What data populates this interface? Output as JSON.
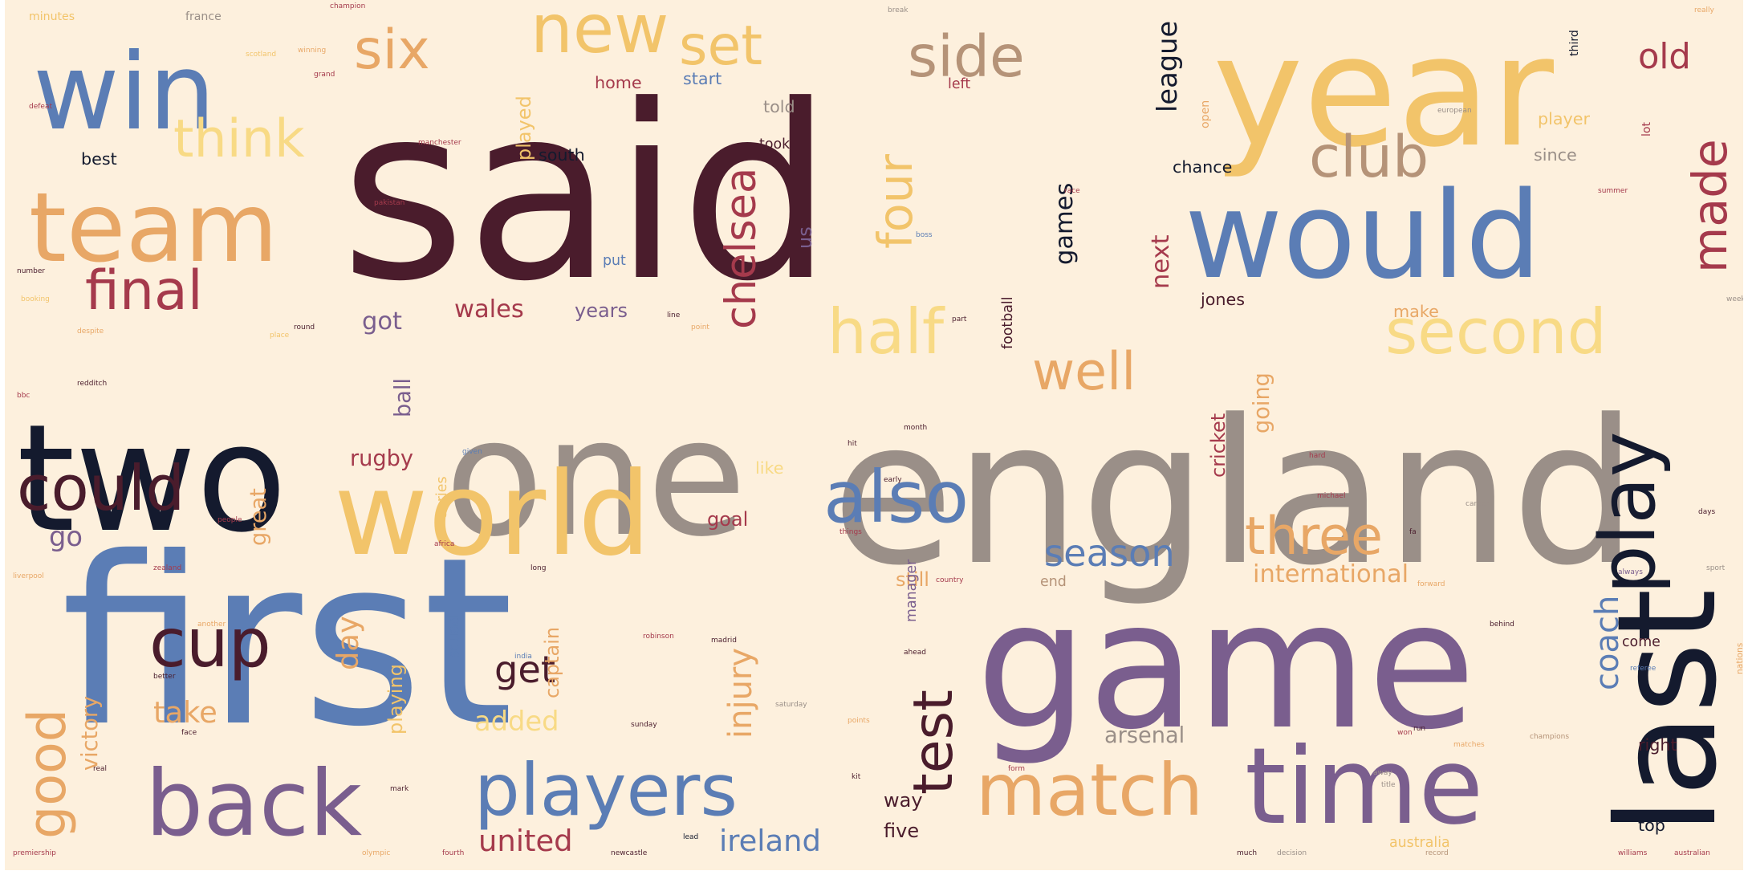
{
  "colors": {
    "background": "#fdf0dd",
    "palette": [
      "#4a1c2c",
      "#f2c46a",
      "#5b7db5",
      "#9a8f88",
      "#141a2e",
      "#e8a766",
      "#7a5e8e",
      "#a53a4c",
      "#b59378",
      "#f8da85"
    ]
  },
  "words": [
    {
      "text": "said",
      "weight": 100,
      "color": "#4a1c2c",
      "vertical": false
    },
    {
      "text": "first",
      "weight": 96,
      "color": "#5b7db5",
      "vertical": false
    },
    {
      "text": "england",
      "weight": 82,
      "color": "#9a8f88",
      "vertical": false
    },
    {
      "text": "game",
      "weight": 72,
      "color": "#7a5e8e",
      "vertical": false
    },
    {
      "text": "one",
      "weight": 66,
      "color": "#9a8f88",
      "vertical": false
    },
    {
      "text": "year",
      "weight": 62,
      "color": "#f2c46a",
      "vertical": false
    },
    {
      "text": "two",
      "weight": 60,
      "color": "#141a2e",
      "vertical": false
    },
    {
      "text": "last",
      "weight": 55,
      "color": "#141a2e",
      "vertical": true
    },
    {
      "text": "would",
      "weight": 48,
      "color": "#5b7db5",
      "vertical": false
    },
    {
      "text": "world",
      "weight": 46,
      "color": "#f2c46a",
      "vertical": false
    },
    {
      "text": "win",
      "weight": 42,
      "color": "#5b7db5",
      "vertical": false
    },
    {
      "text": "time",
      "weight": 42,
      "color": "#7a5e8e",
      "vertical": false
    },
    {
      "text": "team",
      "weight": 38,
      "color": "#e8a766",
      "vertical": false
    },
    {
      "text": "back",
      "weight": 36,
      "color": "#7a5e8e",
      "vertical": false
    },
    {
      "text": "players",
      "weight": 28,
      "color": "#5b7db5",
      "vertical": false
    },
    {
      "text": "match",
      "weight": 28,
      "color": "#e8a766",
      "vertical": false
    },
    {
      "text": "play",
      "weight": 30,
      "color": "#141a2e",
      "vertical": true
    },
    {
      "text": "also",
      "weight": 28,
      "color": "#5b7db5",
      "vertical": false
    },
    {
      "text": "new",
      "weight": 26,
      "color": "#f2c46a",
      "vertical": false
    },
    {
      "text": "cup",
      "weight": 26,
      "color": "#4a1c2c",
      "vertical": false
    },
    {
      "text": "could",
      "weight": 24,
      "color": "#4a1c2c",
      "vertical": false
    },
    {
      "text": "half",
      "weight": 24,
      "color": "#f8da85",
      "vertical": false
    },
    {
      "text": "second",
      "weight": 24,
      "color": "#f8da85",
      "vertical": false
    },
    {
      "text": "side",
      "weight": 22,
      "color": "#b59378",
      "vertical": false
    },
    {
      "text": "club",
      "weight": 22,
      "color": "#b59378",
      "vertical": false
    },
    {
      "text": "six",
      "weight": 21,
      "color": "#e8a766",
      "vertical": false
    },
    {
      "text": "set",
      "weight": 21,
      "color": "#f2c46a",
      "vertical": false
    },
    {
      "text": "final",
      "weight": 21,
      "color": "#a53a4c",
      "vertical": false
    },
    {
      "text": "think",
      "weight": 20,
      "color": "#f8da85",
      "vertical": false
    },
    {
      "text": "well",
      "weight": 20,
      "color": "#e8a766",
      "vertical": false
    },
    {
      "text": "three",
      "weight": 20,
      "color": "#e8a766",
      "vertical": false
    },
    {
      "text": "good",
      "weight": 20,
      "color": "#e8a766",
      "vertical": true
    },
    {
      "text": "test",
      "weight": 21,
      "color": "#4a1c2c",
      "vertical": true
    },
    {
      "text": "made",
      "weight": 18,
      "color": "#a53a4c",
      "vertical": true
    },
    {
      "text": "four",
      "weight": 18,
      "color": "#f2c46a",
      "vertical": true
    },
    {
      "text": "chelsea",
      "weight": 16,
      "color": "#a53a4c",
      "vertical": true
    },
    {
      "text": "season",
      "weight": 14,
      "color": "#5b7db5",
      "vertical": false
    },
    {
      "text": "get",
      "weight": 14,
      "color": "#4a1c2c",
      "vertical": false
    },
    {
      "text": "old",
      "weight": 13,
      "color": "#a53a4c",
      "vertical": false
    },
    {
      "text": "coach",
      "weight": 12,
      "color": "#5b7db5",
      "vertical": true
    },
    {
      "text": "injury",
      "weight": 12,
      "color": "#e8a766",
      "vertical": true
    },
    {
      "text": "take",
      "weight": 11,
      "color": "#e8a766",
      "vertical": false
    },
    {
      "text": "ireland",
      "weight": 11,
      "color": "#5b7db5",
      "vertical": false
    },
    {
      "text": "united",
      "weight": 11,
      "color": "#a53a4c",
      "vertical": false
    },
    {
      "text": "day",
      "weight": 11,
      "color": "#e8a766",
      "vertical": true
    },
    {
      "text": "league",
      "weight": 10,
      "color": "#141a2e",
      "vertical": true
    },
    {
      "text": "added",
      "weight": 10,
      "color": "#f8da85",
      "vertical": false
    },
    {
      "text": "go",
      "weight": 10,
      "color": "#7a5e8e",
      "vertical": false
    },
    {
      "text": "international",
      "weight": 9,
      "color": "#e8a766",
      "vertical": false
    },
    {
      "text": "wales",
      "weight": 9,
      "color": "#a53a4c",
      "vertical": false
    },
    {
      "text": "got",
      "weight": 9,
      "color": "#7a5e8e",
      "vertical": false
    },
    {
      "text": "games",
      "weight": 9,
      "color": "#141a2e",
      "vertical": true
    },
    {
      "text": "next",
      "weight": 9,
      "color": "#a53a4c",
      "vertical": true
    },
    {
      "text": "arsenal",
      "weight": 8,
      "color": "#9a8f88",
      "vertical": false
    },
    {
      "text": "victory",
      "weight": 8,
      "color": "#e8a766",
      "vertical": true
    },
    {
      "text": "great",
      "weight": 8,
      "color": "#e8a766",
      "vertical": true
    },
    {
      "text": "ball",
      "weight": 8,
      "color": "#7a5e8e",
      "vertical": true
    },
    {
      "text": "rugby",
      "weight": 8,
      "color": "#a53a4c",
      "vertical": false
    },
    {
      "text": "going",
      "weight": 8,
      "color": "#e8a766",
      "vertical": true
    },
    {
      "text": "five",
      "weight": 7,
      "color": "#4a1c2c",
      "vertical": false
    },
    {
      "text": "captain",
      "weight": 7,
      "color": "#e8a766",
      "vertical": true
    },
    {
      "text": "goal",
      "weight": 7,
      "color": "#a53a4c",
      "vertical": false
    },
    {
      "text": "years",
      "weight": 7,
      "color": "#7a5e8e",
      "vertical": false
    },
    {
      "text": "played",
      "weight": 7,
      "color": "#f2c46a",
      "vertical": true
    },
    {
      "text": "playing",
      "weight": 7,
      "color": "#f2c46a",
      "vertical": true
    },
    {
      "text": "cricket",
      "weight": 7,
      "color": "#a53a4c",
      "vertical": true
    },
    {
      "text": "still",
      "weight": 7,
      "color": "#e8a766",
      "vertical": false
    },
    {
      "text": "way",
      "weight": 7,
      "color": "#4a1c2c",
      "vertical": false
    },
    {
      "text": "us",
      "weight": 7,
      "color": "#7a5e8e",
      "vertical": true
    },
    {
      "text": "like",
      "weight": 6,
      "color": "#f8da85",
      "vertical": false
    },
    {
      "text": "best",
      "weight": 6,
      "color": "#141a2e",
      "vertical": false
    },
    {
      "text": "south",
      "weight": 6,
      "color": "#141a2e",
      "vertical": false
    },
    {
      "text": "chance",
      "weight": 6,
      "color": "#141a2e",
      "vertical": false
    },
    {
      "text": "top",
      "weight": 6,
      "color": "#141a2e",
      "vertical": false
    },
    {
      "text": "right",
      "weight": 6,
      "color": "#4a1c2c",
      "vertical": false
    },
    {
      "text": "since",
      "weight": 6,
      "color": "#9a8f88",
      "vertical": false
    },
    {
      "text": "make",
      "weight": 6,
      "color": "#e8a766",
      "vertical": false
    },
    {
      "text": "jones",
      "weight": 6,
      "color": "#4a1c2c",
      "vertical": false
    },
    {
      "text": "player",
      "weight": 6,
      "color": "#f2c46a",
      "vertical": false
    },
    {
      "text": "told",
      "weight": 6,
      "color": "#9a8f88",
      "vertical": false
    },
    {
      "text": "home",
      "weight": 6,
      "color": "#a53a4c",
      "vertical": false
    },
    {
      "text": "start",
      "weight": 6,
      "color": "#5b7db5",
      "vertical": false
    },
    {
      "text": "took",
      "weight": 5,
      "color": "#4a1c2c",
      "vertical": false
    },
    {
      "text": "put",
      "weight": 5,
      "color": "#5b7db5",
      "vertical": false
    },
    {
      "text": "end",
      "weight": 5,
      "color": "#b59378",
      "vertical": false
    },
    {
      "text": "series",
      "weight": 5,
      "color": "#f2c46a",
      "vertical": true
    },
    {
      "text": "squad",
      "weight": 5,
      "color": "#5b7db5",
      "vertical": true
    },
    {
      "text": "football",
      "weight": 5,
      "color": "#4a1c2c",
      "vertical": true
    },
    {
      "text": "manager",
      "weight": 5,
      "color": "#7a5e8e",
      "vertical": true
    },
    {
      "text": "come",
      "weight": 5,
      "color": "#4a1c2c",
      "vertical": false
    },
    {
      "text": "australia",
      "weight": 5,
      "color": "#f2c46a",
      "vertical": false
    },
    {
      "text": "left",
      "weight": 5,
      "color": "#a53a4c",
      "vertical": false
    },
    {
      "text": "third",
      "weight": 4,
      "color": "#141a2e",
      "vertical": true
    },
    {
      "text": "open",
      "weight": 4,
      "color": "#e8a766",
      "vertical": true
    },
    {
      "text": "lot",
      "weight": 4,
      "color": "#a53a4c",
      "vertical": true
    },
    {
      "text": "minutes",
      "weight": 4,
      "color": "#f2c46a",
      "vertical": false
    },
    {
      "text": "france",
      "weight": 4,
      "color": "#9a8f88",
      "vertical": false
    },
    {
      "text": "nations",
      "weight": 3,
      "color": "#e8a766",
      "vertical": true
    },
    {
      "text": "always",
      "weight": 2,
      "color": "#7a5e8e",
      "vertical": false
    },
    {
      "text": "sport",
      "weight": 2,
      "color": "#9a8f88",
      "vertical": false
    },
    {
      "text": "champions",
      "weight": 2,
      "color": "#b59378",
      "vertical": false
    },
    {
      "text": "days",
      "weight": 2,
      "color": "#4a1c2c",
      "vertical": false
    },
    {
      "text": "williams",
      "weight": 2,
      "color": "#a53a4c",
      "vertical": false
    },
    {
      "text": "australian",
      "weight": 2,
      "color": "#a53a4c",
      "vertical": false
    },
    {
      "text": "record",
      "weight": 2,
      "color": "#b59378",
      "vertical": false
    },
    {
      "text": "decision",
      "weight": 2,
      "color": "#9a8f88",
      "vertical": false
    },
    {
      "text": "much",
      "weight": 2,
      "color": "#4a1c2c",
      "vertical": false
    },
    {
      "text": "premiership",
      "weight": 2,
      "color": "#a53a4c",
      "vertical": false
    },
    {
      "text": "olympic",
      "weight": 2,
      "color": "#e8a766",
      "vertical": false
    },
    {
      "text": "fourth",
      "weight": 2,
      "color": "#a53a4c",
      "vertical": false
    },
    {
      "text": "newcastle",
      "weight": 2,
      "color": "#4a1c2c",
      "vertical": false
    },
    {
      "text": "lead",
      "weight": 2,
      "color": "#141a2e",
      "vertical": false
    },
    {
      "text": "liverpool",
      "weight": 2,
      "color": "#e8a766",
      "vertical": false
    },
    {
      "text": "zealand",
      "weight": 2,
      "color": "#a53a4c",
      "vertical": false
    },
    {
      "text": "people",
      "weight": 2,
      "color": "#a53a4c",
      "vertical": false
    },
    {
      "text": "robinson",
      "weight": 2,
      "color": "#a53a4c",
      "vertical": false
    },
    {
      "text": "saturday",
      "weight": 2,
      "color": "#9a8f88",
      "vertical": false
    },
    {
      "text": "points",
      "weight": 2,
      "color": "#e8a766",
      "vertical": false
    },
    {
      "text": "referee",
      "weight": 2,
      "color": "#5b7db5",
      "vertical": false
    },
    {
      "text": "behind",
      "weight": 2,
      "color": "#4a1c2c",
      "vertical": false
    },
    {
      "text": "matches",
      "weight": 2,
      "color": "#e8a766",
      "vertical": false
    },
    {
      "text": "form",
      "weight": 2,
      "color": "#a53a4c",
      "vertical": false
    },
    {
      "text": "country",
      "weight": 2,
      "color": "#a53a4c",
      "vertical": false
    },
    {
      "text": "michael",
      "weight": 2,
      "color": "#a53a4c",
      "vertical": false
    },
    {
      "text": "career",
      "weight": 2,
      "color": "#9a8f88",
      "vertical": false
    },
    {
      "text": "forward",
      "weight": 2,
      "color": "#e8a766",
      "vertical": false
    },
    {
      "text": "away",
      "weight": 2,
      "color": "#9a8f88",
      "vertical": false
    },
    {
      "text": "madrid",
      "weight": 2,
      "color": "#4a1c2c",
      "vertical": false
    },
    {
      "text": "sunday",
      "weight": 2,
      "color": "#4a1c2c",
      "vertical": false
    },
    {
      "text": "india",
      "weight": 2,
      "color": "#5b7db5",
      "vertical": false
    },
    {
      "text": "africa",
      "weight": 2,
      "color": "#a53a4c",
      "vertical": false
    },
    {
      "text": "early",
      "weight": 2,
      "color": "#4a1c2c",
      "vertical": false
    },
    {
      "text": "long",
      "weight": 2,
      "color": "#4a1c2c",
      "vertical": false
    },
    {
      "text": "another",
      "weight": 2,
      "color": "#e8a766",
      "vertical": false
    },
    {
      "text": "better",
      "weight": 2,
      "color": "#4a1c2c",
      "vertical": false
    },
    {
      "text": "real",
      "weight": 2,
      "color": "#4a1c2c",
      "vertical": false
    },
    {
      "text": "mark",
      "weight": 2,
      "color": "#4a1c2c",
      "vertical": false
    },
    {
      "text": "face",
      "weight": 2,
      "color": "#4a1c2c",
      "vertical": false
    },
    {
      "text": "winning",
      "weight": 2,
      "color": "#e8a766",
      "vertical": false
    },
    {
      "text": "grand",
      "weight": 2,
      "color": "#a53a4c",
      "vertical": false
    },
    {
      "text": "defeat",
      "weight": 2,
      "color": "#a53a4c",
      "vertical": false
    },
    {
      "text": "manchester",
      "weight": 2,
      "color": "#a53a4c",
      "vertical": false
    },
    {
      "text": "pakistan",
      "weight": 2,
      "color": "#a53a4c",
      "vertical": false
    },
    {
      "text": "number",
      "weight": 2,
      "color": "#4a1c2c",
      "vertical": false
    },
    {
      "text": "race",
      "weight": 2,
      "color": "#a53a4c",
      "vertical": false
    },
    {
      "text": "boss",
      "weight": 2,
      "color": "#5b7db5",
      "vertical": false
    },
    {
      "text": "break",
      "weight": 2,
      "color": "#9a8f88",
      "vertical": false
    },
    {
      "text": "european",
      "weight": 2,
      "color": "#9a8f88",
      "vertical": false
    },
    {
      "text": "really",
      "weight": 2,
      "color": "#e8a766",
      "vertical": false
    },
    {
      "text": "summer",
      "weight": 2,
      "color": "#a53a4c",
      "vertical": false
    },
    {
      "text": "champion",
      "weight": 2,
      "color": "#a53a4c",
      "vertical": false
    },
    {
      "text": "scotland",
      "weight": 2,
      "color": "#f2c46a",
      "vertical": false
    },
    {
      "text": "week",
      "weight": 2,
      "color": "#9a8f88",
      "vertical": false
    },
    {
      "text": "place",
      "weight": 2,
      "color": "#f2c46a",
      "vertical": false
    },
    {
      "text": "round",
      "weight": 2,
      "color": "#4a1c2c",
      "vertical": false
    },
    {
      "text": "line",
      "weight": 2,
      "color": "#4a1c2c",
      "vertical": false
    },
    {
      "text": "despite",
      "weight": 2,
      "color": "#e8a766",
      "vertical": false
    },
    {
      "text": "redditch",
      "weight": 2,
      "color": "#4a1c2c",
      "vertical": false
    },
    {
      "text": "given",
      "weight": 2,
      "color": "#5b7db5",
      "vertical": false
    },
    {
      "text": "hard",
      "weight": 2,
      "color": "#a53a4c",
      "vertical": false
    },
    {
      "text": "title",
      "weight": 2,
      "color": "#9a8f88",
      "vertical": false
    },
    {
      "text": "run",
      "weight": 2,
      "color": "#4a1c2c",
      "vertical": false
    },
    {
      "text": "booking",
      "weight": 2,
      "color": "#f2c46a",
      "vertical": false
    },
    {
      "text": "part",
      "weight": 2,
      "color": "#4a1c2c",
      "vertical": false
    },
    {
      "text": "point",
      "weight": 2,
      "color": "#e8a766",
      "vertical": false
    },
    {
      "text": "month",
      "weight": 2,
      "color": "#4a1c2c",
      "vertical": false
    },
    {
      "text": "won",
      "weight": 2,
      "color": "#a53a4c",
      "vertical": false
    },
    {
      "text": "bbc",
      "weight": 2,
      "color": "#a53a4c",
      "vertical": false
    },
    {
      "text": "kit",
      "weight": 2,
      "color": "#4a1c2c",
      "vertical": false
    },
    {
      "text": "ahead",
      "weight": 2,
      "color": "#4a1c2c",
      "vertical": false
    },
    {
      "text": "fa",
      "weight": 2,
      "color": "#4a1c2c",
      "vertical": false
    },
    {
      "text": "things",
      "weight": 2,
      "color": "#a53a4c",
      "vertical": false
    },
    {
      "text": "hit",
      "weight": 2,
      "color": "#4a1c2c",
      "vertical": false
    }
  ]
}
